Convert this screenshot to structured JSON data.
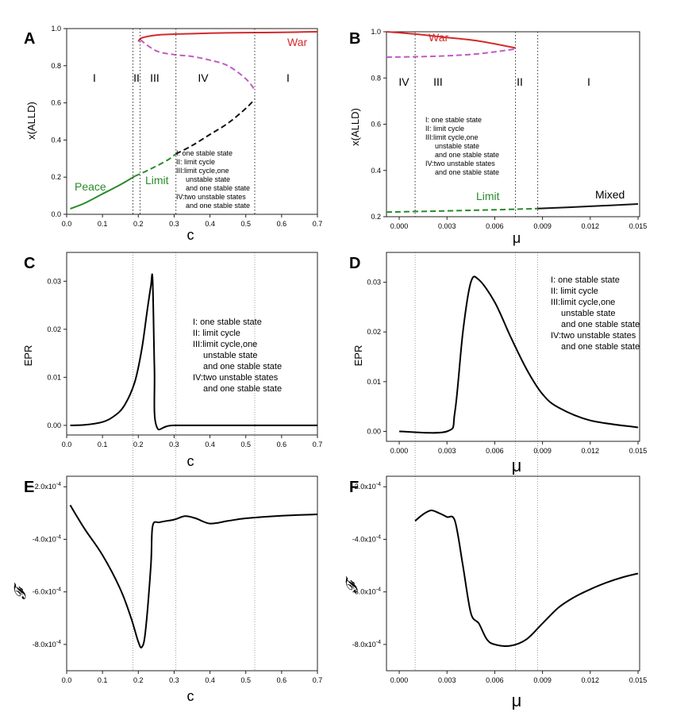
{
  "colors": {
    "war": "#d42a2a",
    "war_unstable": "#c25bc2",
    "peace": "#2a8a2a",
    "unstable": "#111111",
    "axis": "#222222",
    "guide": "#777777"
  },
  "panels": {
    "A": {
      "label": "A",
      "xlabel": "c",
      "ylabel": "x(ALLD)",
      "xticks": [
        "0.0",
        "0.1",
        "0.2",
        "0.3",
        "0.4",
        "0.5",
        "0.6",
        "0.7"
      ],
      "yticks": [
        "0.0",
        "0.2",
        "0.4",
        "0.6",
        "0.8",
        "1.0"
      ],
      "regions": [
        "I",
        "II",
        "III",
        "IV",
        "I"
      ],
      "curve_labels": {
        "war": "War",
        "peace": "Peace",
        "limit": "Limit"
      },
      "legend": [
        "I: one stable state",
        "II: limit cycle",
        "III:limit cycle,one",
        "unstable state",
        "and one stable state",
        "IV:two unstable states",
        "and one stable state"
      ]
    },
    "B": {
      "label": "B",
      "xlabel": "μ",
      "ylabel": "x(ALLD)",
      "xticks": [
        "0.000",
        "0.003",
        "0.006",
        "0.009",
        "0.012",
        "0.015"
      ],
      "yticks": [
        "0.2",
        "0.4",
        "0.6",
        "0.8",
        "1.0"
      ],
      "regions": [
        "IV",
        "III",
        "II",
        "I"
      ],
      "curve_labels": {
        "war": "War",
        "limit": "Limit",
        "mixed": "Mixed"
      },
      "legend": [
        "I:  one stable state",
        "II: limit cycle",
        "III:limit cycle,one",
        "unstable state",
        "and one stable state",
        "IV:two unstable states",
        "and one stable state"
      ]
    },
    "C": {
      "label": "C",
      "xlabel": "c",
      "ylabel": "EPR",
      "xticks": [
        "0.0",
        "0.1",
        "0.2",
        "0.3",
        "0.4",
        "0.5",
        "0.6",
        "0.7"
      ],
      "yticks": [
        "0.00",
        "0.01",
        "0.02",
        "0.03"
      ],
      "legend": [
        "I:  one stable state",
        "II: limit cycle",
        "III:limit cycle,one",
        "unstable state",
        "and one stable state",
        "IV:two unstable states",
        "and one stable state"
      ]
    },
    "D": {
      "label": "D",
      "xlabel": "μ",
      "ylabel": "EPR",
      "xticks": [
        "0.000",
        "0.003",
        "0.006",
        "0.009",
        "0.012",
        "0.015"
      ],
      "yticks": [
        "0.00",
        "0.01",
        "0.02",
        "0.03"
      ],
      "legend": [
        "I:  one stable state",
        "II: limit cycle",
        "III:limit cycle,one",
        "unstable state",
        "and one stable state",
        "IV:two unstable states",
        "and one stable state"
      ]
    },
    "E": {
      "label": "E",
      "xlabel": "c",
      "ylabel": "𝓕",
      "xticks": [
        "0.0",
        "0.1",
        "0.2",
        "0.3",
        "0.4",
        "0.5",
        "0.6",
        "0.7"
      ],
      "yticks": [
        "-2.0x10-4",
        "-4.0x10-4",
        "-6.0x10-4",
        "-8.0x10-4"
      ]
    },
    "F": {
      "label": "F",
      "xlabel": "μ",
      "ylabel": "𝓕",
      "xticks": [
        "0.000",
        "0.003",
        "0.006",
        "0.009",
        "0.012",
        "0.015"
      ],
      "yticks": [
        "-2.0x10-4",
        "-4.0x10-4",
        "-6.0x10-4",
        "-8.0x10-4"
      ]
    }
  },
  "chart_data": [
    {
      "panel": "A",
      "type": "line",
      "xlabel": "c",
      "ylabel": "x(ALLD)",
      "xlim": [
        0,
        0.7
      ],
      "ylim": [
        0,
        1.0
      ],
      "boundaries": [
        0.185,
        0.205,
        0.305,
        0.525
      ],
      "series": [
        {
          "name": "Peace",
          "style": "solid",
          "color": "green",
          "x": [
            0.01,
            0.05,
            0.1,
            0.15,
            0.19
          ],
          "y": [
            0.03,
            0.06,
            0.11,
            0.16,
            0.205
          ]
        },
        {
          "name": "Limit",
          "style": "dashed",
          "color": "green",
          "x": [
            0.19,
            0.23,
            0.28,
            0.305
          ],
          "y": [
            0.205,
            0.24,
            0.29,
            0.325
          ]
        },
        {
          "name": "unstable",
          "style": "dashed",
          "color": "black",
          "x": [
            0.305,
            0.35,
            0.4,
            0.45,
            0.5,
            0.525
          ],
          "y": [
            0.325,
            0.37,
            0.43,
            0.49,
            0.57,
            0.62
          ]
        },
        {
          "name": "unstable-high",
          "style": "dashed",
          "color": "purple",
          "x": [
            0.205,
            0.25,
            0.3,
            0.35,
            0.4,
            0.45,
            0.5,
            0.525
          ],
          "y": [
            0.94,
            0.88,
            0.86,
            0.85,
            0.83,
            0.8,
            0.73,
            0.67
          ]
        },
        {
          "name": "War",
          "style": "solid",
          "color": "red",
          "x": [
            0.2,
            0.21,
            0.25,
            0.3,
            0.4,
            0.5,
            0.6,
            0.7
          ],
          "y": [
            0.93,
            0.95,
            0.965,
            0.97,
            0.975,
            0.978,
            0.98,
            0.983
          ]
        }
      ]
    },
    {
      "panel": "B",
      "type": "line",
      "xlabel": "μ",
      "ylabel": "x(ALLD)",
      "xlim": [
        -0.0008,
        0.0151
      ],
      "ylim": [
        0.2,
        1.0
      ],
      "boundaries": [
        0.001,
        0.0073,
        0.0087
      ],
      "series": [
        {
          "name": "War",
          "style": "solid",
          "color": "red",
          "x": [
            -0.0008,
            0.001,
            0.003,
            0.005,
            0.0073
          ],
          "y": [
            1.0,
            0.99,
            0.975,
            0.96,
            0.93
          ]
        },
        {
          "name": "unstable",
          "style": "dashed",
          "color": "purple",
          "x": [
            -0.0008,
            0.001,
            0.003,
            0.005,
            0.0073
          ],
          "y": [
            0.89,
            0.892,
            0.896,
            0.905,
            0.925
          ]
        },
        {
          "name": "Limit",
          "style": "dashed",
          "color": "green",
          "x": [
            -0.0008,
            0.003,
            0.006,
            0.0087
          ],
          "y": [
            0.22,
            0.225,
            0.23,
            0.235
          ]
        },
        {
          "name": "Mixed",
          "style": "solid",
          "color": "black",
          "x": [
            0.0087,
            0.012,
            0.015
          ],
          "y": [
            0.235,
            0.245,
            0.255
          ]
        }
      ]
    },
    {
      "panel": "C",
      "type": "line",
      "xlabel": "c",
      "ylabel": "EPR",
      "xlim": [
        0,
        0.7
      ],
      "ylim": [
        -0.002,
        0.036
      ],
      "series": [
        {
          "name": "EPR",
          "x": [
            0.01,
            0.05,
            0.1,
            0.13,
            0.16,
            0.19,
            0.21,
            0.225,
            0.235,
            0.24,
            0.245,
            0.25,
            0.3,
            0.5,
            0.7
          ],
          "y": [
            0.0,
            0.0001,
            0.0007,
            0.0018,
            0.004,
            0.009,
            0.016,
            0.024,
            0.029,
            0.0303,
            0.012,
            0.0,
            0.0,
            0.0,
            0.0
          ]
        }
      ]
    },
    {
      "panel": "D",
      "type": "line",
      "xlabel": "μ",
      "ylabel": "EPR",
      "xlim": [
        -0.0008,
        0.0151
      ],
      "ylim": [
        -0.002,
        0.036
      ],
      "series": [
        {
          "name": "EPR",
          "x": [
            0.0,
            0.003,
            0.0035,
            0.004,
            0.0045,
            0.005,
            0.006,
            0.007,
            0.008,
            0.009,
            0.01,
            0.012,
            0.015
          ],
          "y": [
            0.0,
            0.0,
            0.004,
            0.02,
            0.03,
            0.0305,
            0.026,
            0.019,
            0.0125,
            0.0075,
            0.0048,
            0.0022,
            0.0008
          ]
        }
      ]
    },
    {
      "panel": "E",
      "type": "line",
      "xlabel": "c",
      "ylabel": "F",
      "xlim": [
        0,
        0.7
      ],
      "ylim": [
        -0.0009,
        -0.00016
      ],
      "series": [
        {
          "name": "F",
          "x": [
            0.01,
            0.05,
            0.1,
            0.15,
            0.18,
            0.2,
            0.21,
            0.22,
            0.235,
            0.24,
            0.26,
            0.3,
            0.33,
            0.36,
            0.4,
            0.45,
            0.5,
            0.6,
            0.7
          ],
          "y": [
            -0.00027,
            -0.00036,
            -0.00046,
            -0.00059,
            -0.0007,
            -0.00079,
            -0.00081,
            -0.00075,
            -0.0005,
            -0.00035,
            -0.000335,
            -0.000325,
            -0.000312,
            -0.00032,
            -0.00034,
            -0.00033,
            -0.00032,
            -0.00031,
            -0.000305
          ]
        }
      ]
    },
    {
      "panel": "F",
      "type": "line",
      "xlabel": "μ",
      "ylabel": "F",
      "xlim": [
        -0.0008,
        0.0151
      ],
      "ylim": [
        -0.0009,
        -0.00016
      ],
      "series": [
        {
          "name": "F",
          "x": [
            0.001,
            0.0015,
            0.002,
            0.0025,
            0.003,
            0.0035,
            0.004,
            0.0045,
            0.005,
            0.0055,
            0.006,
            0.007,
            0.008,
            0.009,
            0.01,
            0.011,
            0.012,
            0.013,
            0.014,
            0.015
          ],
          "y": [
            -0.00033,
            -0.000305,
            -0.00029,
            -0.0003,
            -0.000315,
            -0.00033,
            -0.0005,
            -0.00068,
            -0.00072,
            -0.00078,
            -0.0008,
            -0.000805,
            -0.00078,
            -0.00072,
            -0.00066,
            -0.00062,
            -0.00059,
            -0.000565,
            -0.000545,
            -0.00053
          ]
        }
      ]
    }
  ]
}
